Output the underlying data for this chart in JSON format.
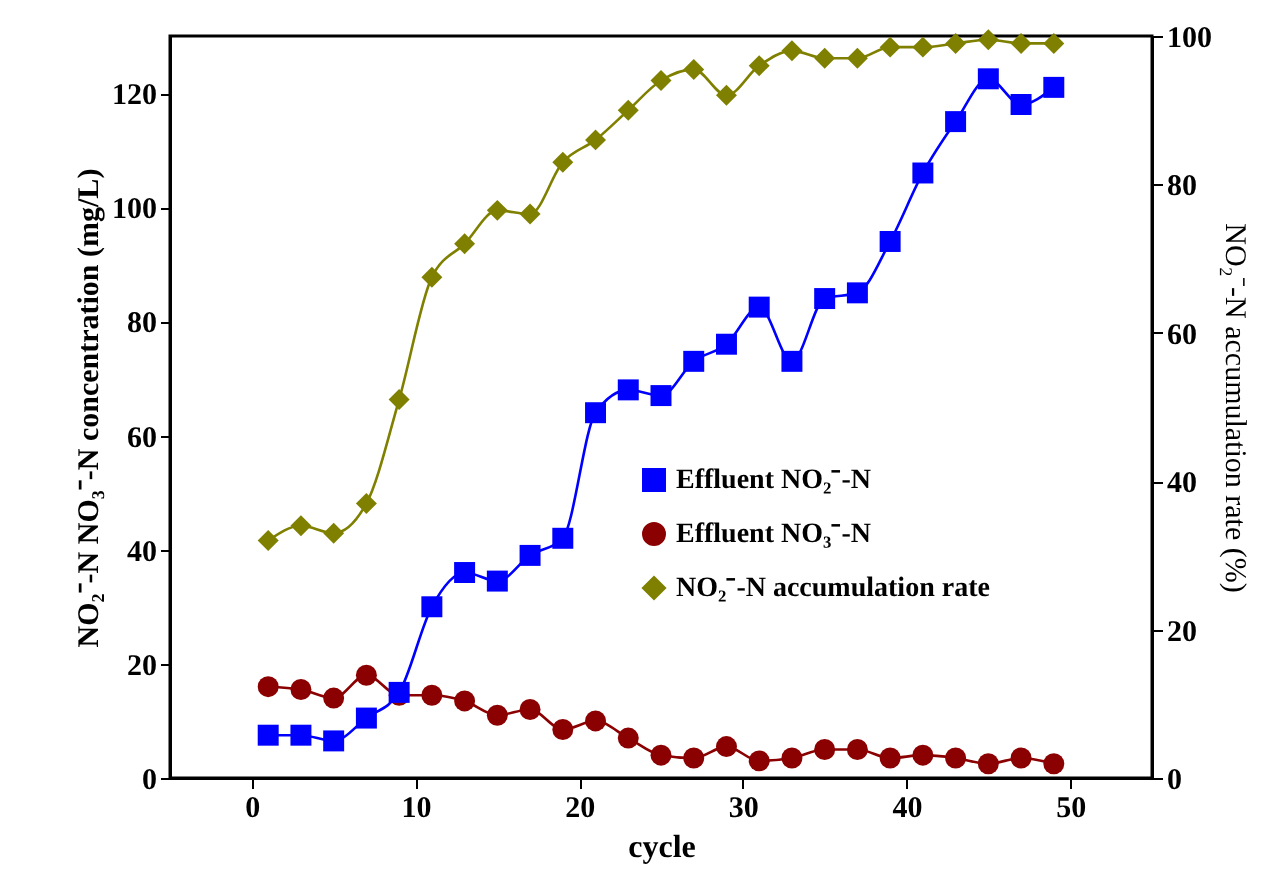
{
  "chart_data": {
    "type": "line",
    "xlabel": "cycle",
    "ylabel": "NO₂⁻-N  NO₃⁻-N concentration (mg/L)",
    "y2label": "NO₂⁻-N accumulation rate (%)",
    "x": [
      1,
      3,
      5,
      7,
      9,
      11,
      13,
      15,
      17,
      19,
      21,
      23,
      25,
      27,
      29,
      31,
      33,
      35,
      37,
      39,
      41,
      43,
      45,
      47,
      49
    ],
    "xlim": [
      -5,
      55
    ],
    "xticks": [
      0,
      10,
      20,
      30,
      40,
      50
    ],
    "ylim": [
      0,
      130
    ],
    "yticks": [
      0,
      20,
      40,
      60,
      80,
      100,
      120
    ],
    "y2lim": [
      0,
      100
    ],
    "y2ticks": [
      0,
      20,
      40,
      60,
      80,
      100
    ],
    "grid": false,
    "legend": "right",
    "line_style": "solid",
    "series": [
      {
        "name": "Effluent  NO₂⁻-N",
        "color": "#0000ff",
        "marker": "square",
        "values": [
          7.5,
          7.5,
          6.5,
          10.5,
          15,
          30,
          36,
          34.5,
          39,
          42,
          64,
          68,
          67,
          73,
          76,
          82.5,
          73,
          84,
          85,
          94,
          106,
          115,
          122.5,
          118,
          121
        ]
      },
      {
        "name": "Effluent  NO₃⁻-N",
        "color": "#8b0000",
        "marker": "circle",
        "values": [
          16,
          15.5,
          14,
          18,
          14.5,
          14.5,
          13.5,
          11,
          12,
          8.5,
          10,
          7,
          4,
          3.5,
          5.5,
          3,
          3.5,
          5,
          5,
          3.5,
          4,
          3.5,
          2.5,
          3.5,
          2.5
        ]
      },
      {
        "name": "NO₂⁻-N accumulation rate",
        "color": "#808000",
        "marker": "diamond",
        "axis": "y2",
        "values": [
          32,
          34,
          33,
          37,
          51,
          67.5,
          72,
          76.5,
          76,
          83,
          86,
          90,
          94,
          95.5,
          92,
          96,
          98,
          97,
          97,
          98.5,
          98.5,
          99,
          99.5,
          99,
          99
        ]
      }
    ]
  }
}
